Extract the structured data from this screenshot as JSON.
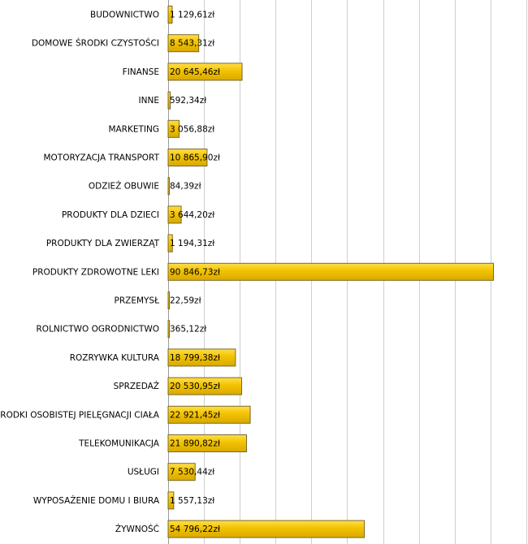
{
  "chart_data": {
    "type": "bar",
    "orientation": "horizontal",
    "title": "",
    "xlabel": "",
    "ylabel": "",
    "currency_suffix": "zł",
    "xlim": [
      0,
      100000
    ],
    "grid": true,
    "categories": [
      "BUDOWNICTWO",
      "DOMOWE ŚRODKI CZYSTOŚCI",
      "FINANSE",
      "INNE",
      "MARKETING",
      "MOTORYZACJA TRANSPORT",
      "ODZIEŻ OBUWIE",
      "PRODUKTY DLA DZIECI",
      "PRODUKTY DLA ZWIERZĄT",
      "PRODUKTY ZDROWOTNE LEKI",
      "PRZEMYSŁ",
      "ROLNICTWO OGRODNICTWO",
      "ROZRYWKA KULTURA",
      "SPRZEDAŻ",
      "ŚRODKI OSOBISTEJ PIELĘGNACJI CIAŁA",
      "TELEKOMUNIKACJA",
      "USŁUGI",
      "WYPOSAŻENIE DOMU I BIURA",
      "ŻYWNOŚĆ"
    ],
    "values": [
      1129.61,
      8543.31,
      20645.46,
      592.34,
      3056.88,
      10865.9,
      84.39,
      3644.2,
      1194.31,
      90846.73,
      22.59,
      365.12,
      18799.38,
      20530.95,
      22921.45,
      21890.82,
      7530.44,
      1557.13,
      54796.22
    ],
    "value_labels": [
      "1 129,61zł",
      "8 543,31zł",
      "20 645,46zł",
      "592,34zł",
      "3 056,88zł",
      "10 865,90zł",
      "84,39zł",
      "3 644,20zł",
      "1 194,31zł",
      "90 846,73zł",
      "22,59zł",
      "365,12zł",
      "18 799,38zł",
      "20 530,95zł",
      "22 921,45zł",
      "21 890,82zł",
      "7 530,44zł",
      "1 557,13zł",
      "54 796,22zł"
    ],
    "bar_color": "#F2C200",
    "bar_border_color": "#7A6A2A"
  }
}
